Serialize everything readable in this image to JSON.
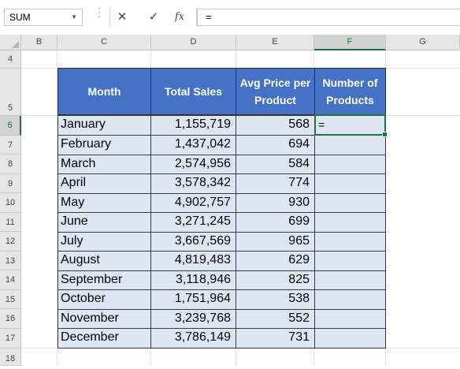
{
  "name_box": {
    "value": "SUM"
  },
  "formula_bar": {
    "cancel_icon": "close-icon",
    "enter_icon": "check-icon",
    "function_label": "fx",
    "formula": "="
  },
  "columns": [
    "B",
    "C",
    "D",
    "E",
    "F",
    "G"
  ],
  "selected_column": "F",
  "rows": [
    "4",
    "5",
    "6",
    "7",
    "8",
    "9",
    "10",
    "11",
    "12",
    "13",
    "14",
    "15",
    "16",
    "17",
    "18"
  ],
  "selected_row": "6",
  "table": {
    "headers": {
      "month": "Month",
      "total_sales": "Total Sales",
      "avg_price": "Avg Price per Product",
      "num_products": "Number of Products"
    },
    "rows": [
      {
        "month": "January",
        "sales": "1,155,719",
        "price": "568",
        "products": ""
      },
      {
        "month": "February",
        "sales": "1,437,042",
        "price": "694",
        "products": ""
      },
      {
        "month": "March",
        "sales": "2,574,956",
        "price": "584",
        "products": ""
      },
      {
        "month": "April",
        "sales": "3,578,342",
        "price": "774",
        "products": ""
      },
      {
        "month": "May",
        "sales": "4,902,757",
        "price": "930",
        "products": ""
      },
      {
        "month": "June",
        "sales": "3,271,245",
        "price": "699",
        "products": ""
      },
      {
        "month": "July",
        "sales": "3,667,569",
        "price": "965",
        "products": ""
      },
      {
        "month": "August",
        "sales": "4,819,483",
        "price": "629",
        "products": ""
      },
      {
        "month": "September",
        "sales": "3,118,946",
        "price": "825",
        "products": ""
      },
      {
        "month": "October",
        "sales": "1,751,964",
        "price": "538",
        "products": ""
      },
      {
        "month": "November",
        "sales": "3,239,768",
        "price": "552",
        "products": ""
      },
      {
        "month": "December",
        "sales": "3,786,149",
        "price": "731",
        "products": ""
      }
    ]
  },
  "active_cell": {
    "ref": "F6",
    "value": "="
  },
  "colors": {
    "header_fill": "#4472c4",
    "cell_fill": "#dde6f1",
    "selection": "#217346"
  }
}
